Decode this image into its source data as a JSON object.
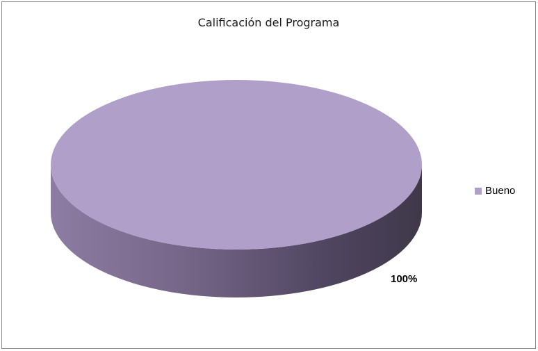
{
  "chart_data": {
    "type": "pie",
    "title": "Calificación del Programa",
    "categories": [
      "Bueno"
    ],
    "values": [
      100
    ],
    "data_labels": [
      "100%"
    ],
    "legend": {
      "placement": "right",
      "entries": [
        "Bueno"
      ]
    },
    "colors": {
      "slice": "#b09fc9"
    },
    "style": "3d"
  }
}
